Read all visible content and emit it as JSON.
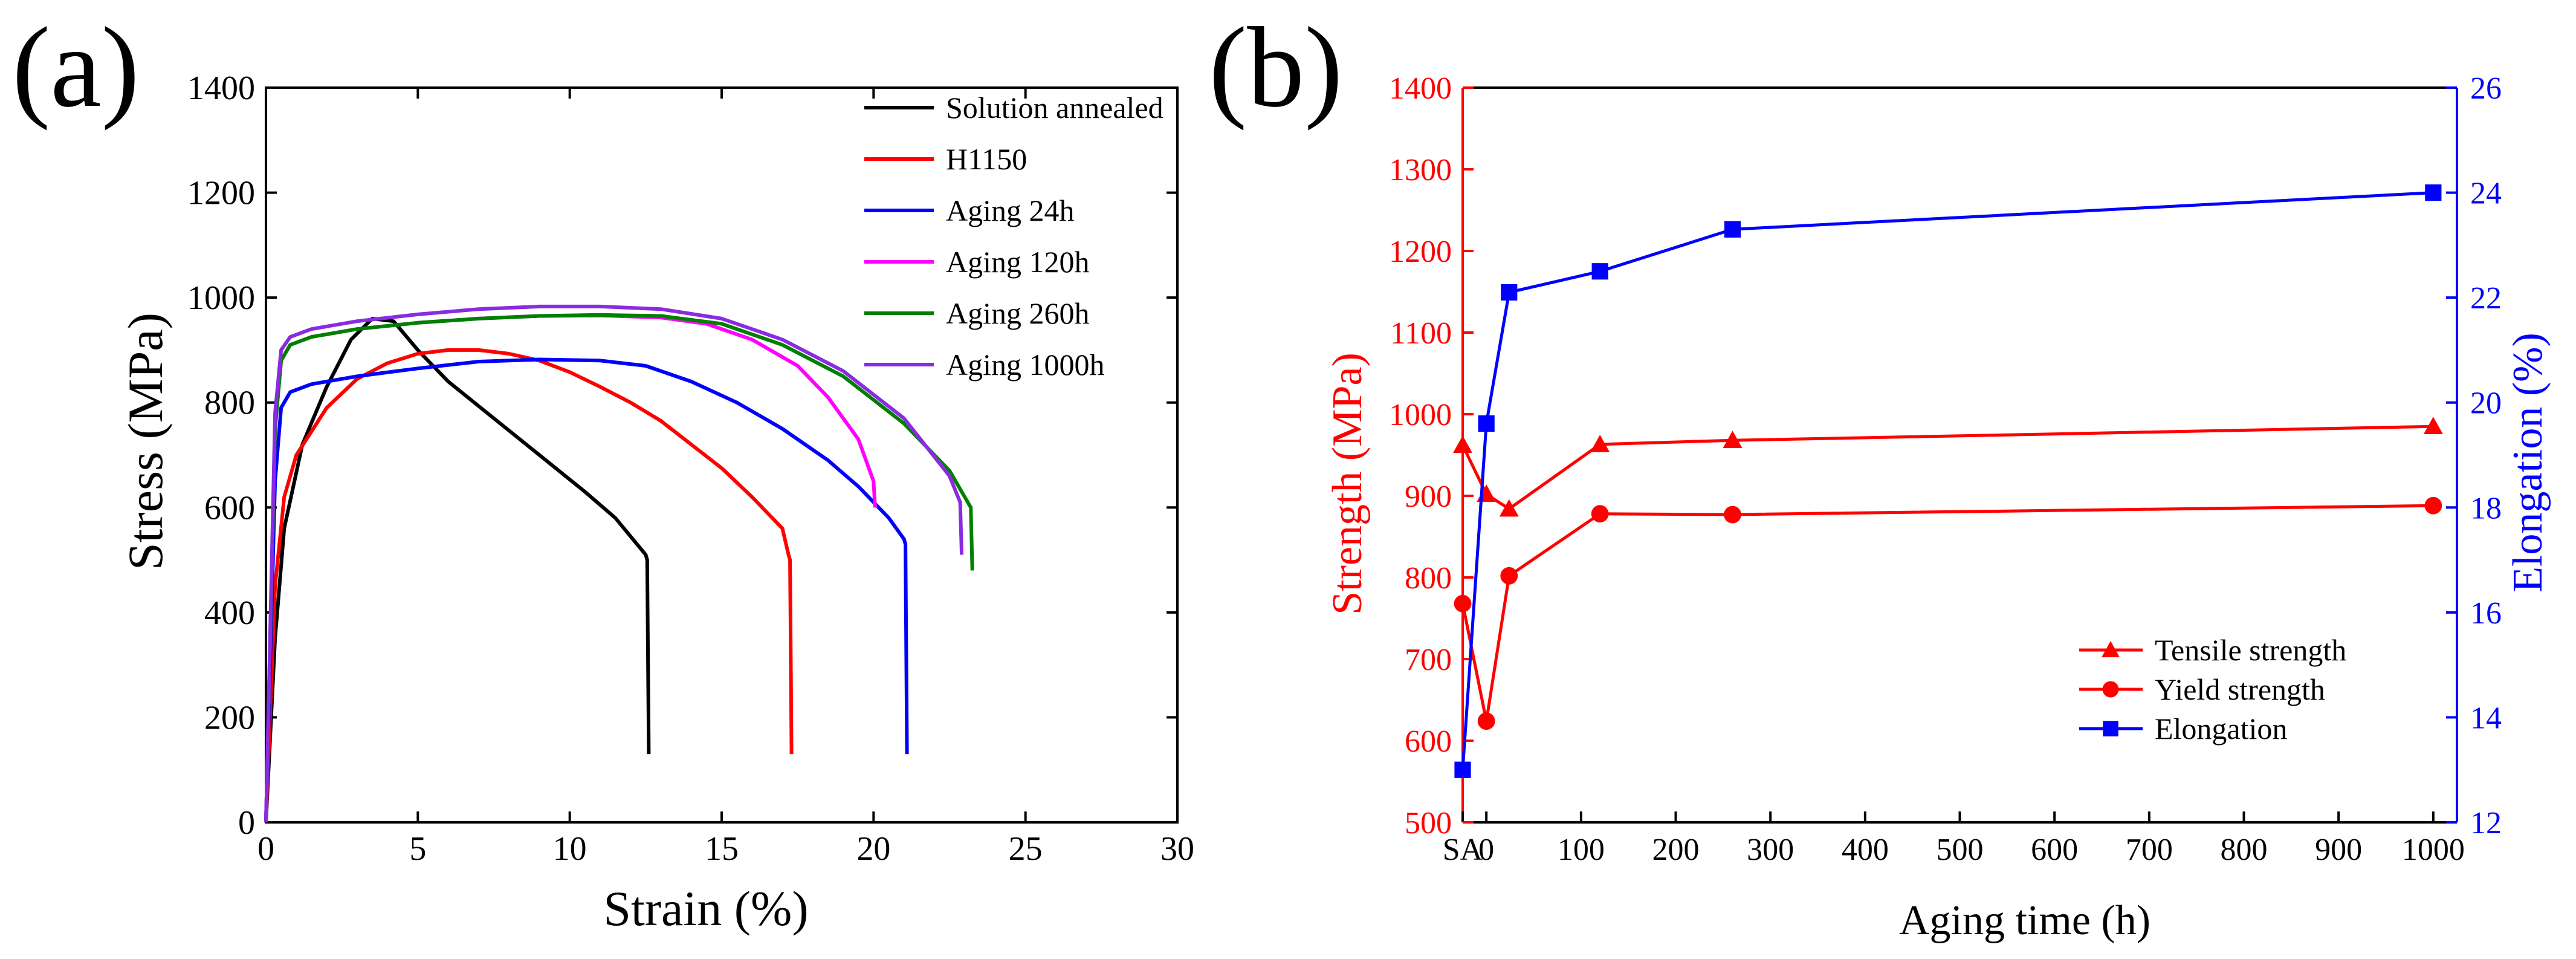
{
  "colors": {
    "black": "#000000",
    "red": "#ff0000",
    "blue": "#0000ff",
    "magenta": "#ff00ff",
    "green": "#008000",
    "purple": "#8a2be2"
  },
  "chart_data": [
    {
      "panel_label": "(a)",
      "type": "line",
      "title": "",
      "xlabel": "Strain (%)",
      "ylabel": "Stress (MPa)",
      "xlim": [
        0,
        30
      ],
      "ylim": [
        0,
        1400
      ],
      "x_ticks": [
        "0",
        "5",
        "10",
        "15",
        "20",
        "25",
        "30"
      ],
      "y_ticks": [
        "0",
        "200",
        "400",
        "600",
        "800",
        "1000",
        "1200",
        "1400"
      ],
      "grid": false,
      "legend_position": "top-right",
      "series": [
        {
          "name": "Solution annealed",
          "color": "#000000",
          "points": [
            [
              0,
              0
            ],
            [
              0.3,
              350
            ],
            [
              0.6,
              560
            ],
            [
              1.2,
              720
            ],
            [
              2.0,
              830
            ],
            [
              2.8,
              920
            ],
            [
              3.5,
              960
            ],
            [
              4.2,
              955
            ],
            [
              5.0,
              900
            ],
            [
              6.0,
              840
            ],
            [
              7.5,
              770
            ],
            [
              9.0,
              700
            ],
            [
              10.5,
              630
            ],
            [
              11.5,
              580
            ],
            [
              12.5,
              510
            ],
            [
              12.55,
              500
            ],
            [
              12.6,
              130
            ]
          ]
        },
        {
          "name": "H1150",
          "color": "#ff0000",
          "points": [
            [
              0,
              0
            ],
            [
              0.3,
              450
            ],
            [
              0.6,
              620
            ],
            [
              1.0,
              700
            ],
            [
              2.0,
              790
            ],
            [
              3.0,
              845
            ],
            [
              4.0,
              875
            ],
            [
              5.0,
              893
            ],
            [
              6.0,
              900
            ],
            [
              7.0,
              900
            ],
            [
              8.0,
              893
            ],
            [
              9.0,
              880
            ],
            [
              10.0,
              858
            ],
            [
              11.0,
              830
            ],
            [
              12.0,
              800
            ],
            [
              13.0,
              765
            ],
            [
              14.0,
              720
            ],
            [
              15.0,
              675
            ],
            [
              16.0,
              620
            ],
            [
              17.0,
              560
            ],
            [
              17.2,
              510
            ],
            [
              17.25,
              500
            ],
            [
              17.3,
              130
            ]
          ]
        },
        {
          "name": "Aging 24h",
          "color": "#0000ff",
          "points": [
            [
              0,
              0
            ],
            [
              0.3,
              650
            ],
            [
              0.5,
              790
            ],
            [
              0.8,
              820
            ],
            [
              1.5,
              835
            ],
            [
              3.0,
              850
            ],
            [
              5.0,
              865
            ],
            [
              7.0,
              878
            ],
            [
              9.0,
              882
            ],
            [
              11.0,
              880
            ],
            [
              12.5,
              870
            ],
            [
              14.0,
              840
            ],
            [
              15.5,
              800
            ],
            [
              17.0,
              750
            ],
            [
              18.5,
              690
            ],
            [
              19.5,
              640
            ],
            [
              20.5,
              580
            ],
            [
              21.0,
              540
            ],
            [
              21.05,
              530
            ],
            [
              21.1,
              130
            ]
          ]
        },
        {
          "name": "Aging 120h",
          "color": "#ff00ff",
          "points": [
            [
              0,
              0
            ],
            [
              0.3,
              750
            ],
            [
              0.5,
              880
            ],
            [
              0.8,
              910
            ],
            [
              1.5,
              925
            ],
            [
              3.0,
              940
            ],
            [
              5.0,
              952
            ],
            [
              7.0,
              960
            ],
            [
              9.0,
              965
            ],
            [
              11.0,
              966
            ],
            [
              13.0,
              962
            ],
            [
              14.5,
              950
            ],
            [
              16.0,
              920
            ],
            [
              17.5,
              870
            ],
            [
              18.5,
              810
            ],
            [
              19.5,
              730
            ],
            [
              20.0,
              650
            ],
            [
              20.05,
              600
            ]
          ]
        },
        {
          "name": "Aging 260h",
          "color": "#008000",
          "points": [
            [
              0,
              0
            ],
            [
              0.3,
              750
            ],
            [
              0.5,
              880
            ],
            [
              0.8,
              910
            ],
            [
              1.5,
              925
            ],
            [
              3.0,
              940
            ],
            [
              5.0,
              952
            ],
            [
              7.0,
              960
            ],
            [
              9.0,
              965
            ],
            [
              11.0,
              967
            ],
            [
              13.0,
              965
            ],
            [
              15.0,
              950
            ],
            [
              17.0,
              910
            ],
            [
              19.0,
              850
            ],
            [
              21.0,
              760
            ],
            [
              22.5,
              670
            ],
            [
              23.2,
              600
            ],
            [
              23.25,
              480
            ]
          ]
        },
        {
          "name": "Aging 1000h",
          "color": "#8a2be2",
          "points": [
            [
              0,
              0
            ],
            [
              0.3,
              780
            ],
            [
              0.5,
              900
            ],
            [
              0.8,
              925
            ],
            [
              1.5,
              940
            ],
            [
              3.0,
              955
            ],
            [
              5.0,
              968
            ],
            [
              7.0,
              978
            ],
            [
              9.0,
              983
            ],
            [
              11.0,
              983
            ],
            [
              13.0,
              978
            ],
            [
              15.0,
              960
            ],
            [
              17.0,
              920
            ],
            [
              19.0,
              860
            ],
            [
              21.0,
              770
            ],
            [
              22.5,
              660
            ],
            [
              22.85,
              610
            ],
            [
              22.9,
              510
            ]
          ]
        }
      ]
    },
    {
      "panel_label": "(b)",
      "type": "line",
      "title": "",
      "xlabel": "Aging time (h)",
      "ylabel": "Strength (MPa)",
      "y2label": "Elongation (%)",
      "xlim": [
        -25,
        1025
      ],
      "ylim": [
        500,
        1400
      ],
      "y2lim": [
        12,
        26
      ],
      "x_ticks": [
        "SA",
        "0",
        "100",
        "200",
        "300",
        "400",
        "500",
        "600",
        "700",
        "800",
        "900",
        "1000"
      ],
      "y_ticks": [
        "500",
        "600",
        "700",
        "800",
        "900",
        "1000",
        "1100",
        "1200",
        "1300",
        "1400"
      ],
      "y2_ticks": [
        "12",
        "14",
        "16",
        "18",
        "20",
        "22",
        "24",
        "26"
      ],
      "grid": false,
      "legend_position": "bottom-right",
      "categories": [
        "SA",
        "0",
        "24",
        "120",
        "260",
        "1000"
      ],
      "series": [
        {
          "name": "Tensile strength",
          "axis": "left",
          "marker": "triangle",
          "color": "#ff0000",
          "x": [
            -25,
            0,
            24,
            120,
            260,
            1000
          ],
          "values": [
            962,
            902,
            884,
            963,
            968,
            985
          ]
        },
        {
          "name": "Yield strength",
          "axis": "left",
          "marker": "circle",
          "color": "#ff0000",
          "x": [
            -25,
            0,
            24,
            120,
            260,
            1000
          ],
          "values": [
            768,
            624,
            802,
            878,
            877,
            888
          ]
        },
        {
          "name": "Elongation",
          "axis": "right",
          "marker": "square",
          "color": "#0000ff",
          "x": [
            -25,
            0,
            24,
            120,
            260,
            1000
          ],
          "values": [
            13.0,
            19.6,
            22.1,
            22.5,
            23.3,
            24.0
          ]
        }
      ]
    }
  ]
}
